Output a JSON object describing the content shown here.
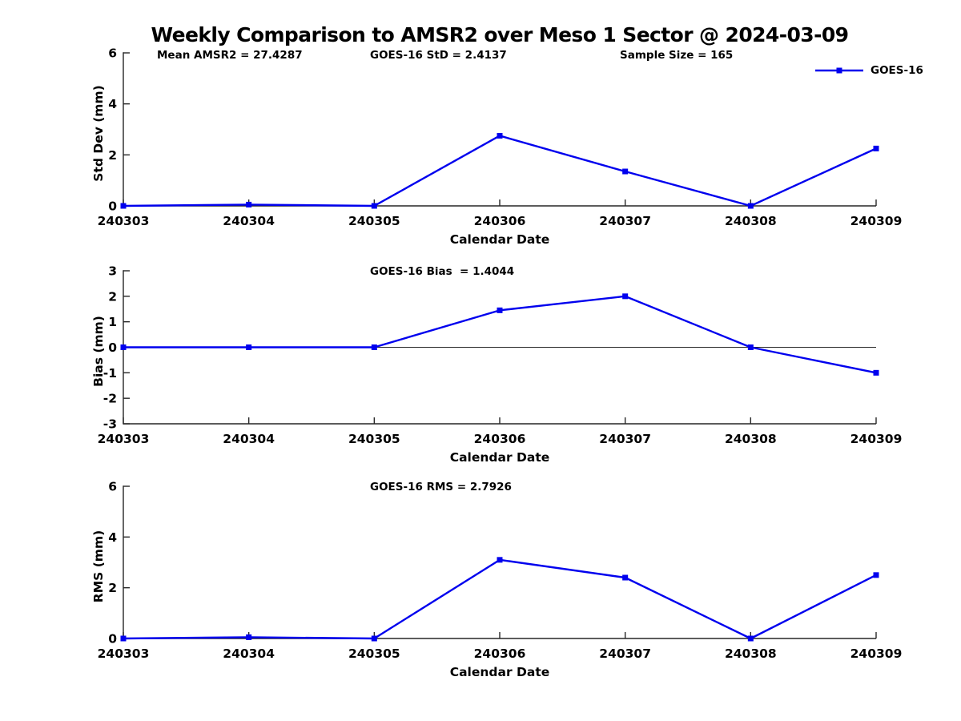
{
  "title": "Weekly Comparison to AMSR2 over Meso 1 Sector @ 2024-03-09",
  "legend": {
    "label": "GOES-16",
    "position": "top-right"
  },
  "colors": {
    "line": "#0000EE",
    "axis": "#262626",
    "text": "#000000",
    "background": "#FFFFFF"
  },
  "chart_data": [
    {
      "type": "line",
      "ylabel": "Std Dev (mm)",
      "xlabel": "Calendar Date",
      "categories": [
        "240303",
        "240304",
        "240305",
        "240306",
        "240307",
        "240308",
        "240309"
      ],
      "series": [
        {
          "name": "GOES-16",
          "values": [
            0,
            0.05,
            0,
            2.75,
            1.35,
            0,
            2.25
          ]
        }
      ],
      "ylim": [
        0,
        6
      ],
      "yticks": [
        0,
        2,
        4,
        6
      ],
      "grid": false,
      "zero_line": false,
      "annotations": [
        "Mean AMSR2 = 27.4287",
        "GOES-16 StD = 2.4137",
        "Sample Size = 165"
      ]
    },
    {
      "type": "line",
      "ylabel": "Bias (mm)",
      "xlabel": "Calendar Date",
      "categories": [
        "240303",
        "240304",
        "240305",
        "240306",
        "240307",
        "240308",
        "240309"
      ],
      "series": [
        {
          "name": "GOES-16",
          "values": [
            0,
            0,
            0,
            1.45,
            2.0,
            0,
            -1.0
          ]
        }
      ],
      "ylim": [
        -3,
        3
      ],
      "yticks": [
        -3,
        -2,
        -1,
        0,
        1,
        2,
        3
      ],
      "grid": false,
      "zero_line": true,
      "annotation": "GOES-16 Bias  = 1.4044"
    },
    {
      "type": "line",
      "ylabel": "RMS (mm)",
      "xlabel": "Calendar Date",
      "categories": [
        "240303",
        "240304",
        "240305",
        "240306",
        "240307",
        "240308",
        "240309"
      ],
      "series": [
        {
          "name": "GOES-16",
          "values": [
            0,
            0.05,
            0,
            3.1,
            2.4,
            0,
            2.5
          ]
        }
      ],
      "ylim": [
        0,
        6
      ],
      "yticks": [
        0,
        2,
        4,
        6
      ],
      "grid": false,
      "zero_line": false,
      "annotation": "GOES-16 RMS = 2.7926"
    }
  ]
}
